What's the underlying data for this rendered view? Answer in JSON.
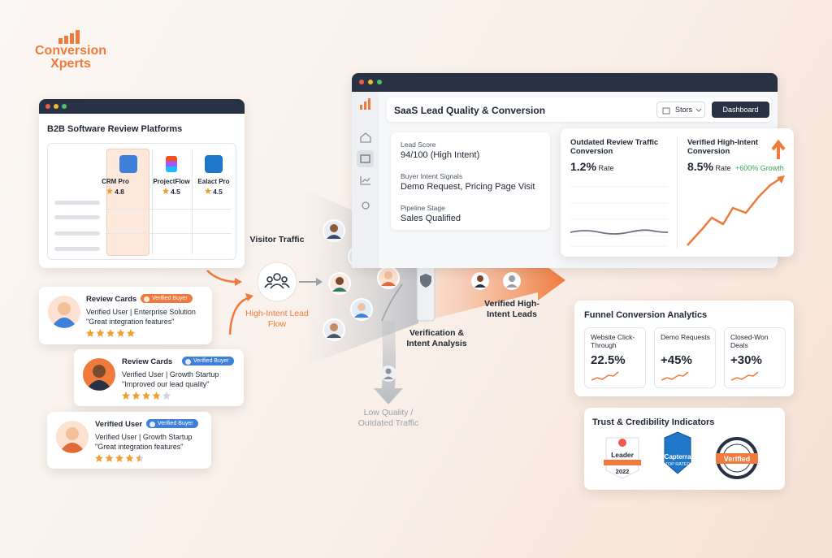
{
  "logo": {
    "line1": "Conversion",
    "line2": "Xperts"
  },
  "platforms": {
    "title": "B2B Software Review Platforms",
    "products": [
      {
        "name": "CRM Pro",
        "rating": 4.8
      },
      {
        "name": "ProjectFlow",
        "rating": 4.5
      },
      {
        "name": "Ealact Pro",
        "rating": 4.5
      }
    ]
  },
  "review_cards": [
    {
      "title": "Review Cards",
      "badge": "Verified Buyer",
      "line": "Verified User | Enterprise Solution",
      "quote": "\"Great integration features\"",
      "stars": 5
    },
    {
      "title": "Review Cards",
      "badge": "Verified Buyer",
      "line": "Verified User | Growth Startup",
      "quote": "\"Improved our lead quality\"",
      "stars": 4
    },
    {
      "title": "Verified User",
      "badge": "Verified Buyer",
      "line": "Verified User | Growth Startup",
      "quote": "\"Great integration features\"",
      "stars": 4.5
    }
  ],
  "flow": {
    "visitor": "Visitor Traffic",
    "high_intent": "High-Intent Lead Flow",
    "verification": "Verification & Intent Analysis",
    "verified_leads": "Verified High-Intent Leads",
    "low_quality": "Low Quality / Outdated Traffic"
  },
  "dashboard": {
    "title": "SaaS Lead Quality & Conversion",
    "dropdown": "Stors",
    "button": "Dashboard",
    "lead": [
      {
        "label": "Lead Score",
        "value": "94/100 (High Intent)"
      },
      {
        "label": "Buyer Intent Signals",
        "value": "Demo Request, Pricing Page Visit"
      },
      {
        "label": "Pipeline Stage",
        "value": "Sales Qualified"
      }
    ],
    "outdated": {
      "title": "Outdated Review Traffic Conversion",
      "value": "1.2%",
      "unit": "Rate"
    },
    "verified": {
      "title": "Verified High-Intent Conversion",
      "value": "8.5%",
      "unit": "Rate",
      "growth": "+600% Growth"
    }
  },
  "funnel": {
    "title": "Funnel Conversion Analytics",
    "metrics": [
      {
        "label": "Website Click-Through",
        "value": "22.5%"
      },
      {
        "label": "Demo Requests",
        "value": "+45%"
      },
      {
        "label": "Closed-Won Deals",
        "value": "+30%"
      }
    ]
  },
  "trust": {
    "title": "Trust & Credibility Indicators",
    "g2": {
      "label": "Leader",
      "year": "2022"
    },
    "capterra": {
      "label": "Capterra",
      "sub": "TOP RATED"
    },
    "verified": "Verified"
  }
}
